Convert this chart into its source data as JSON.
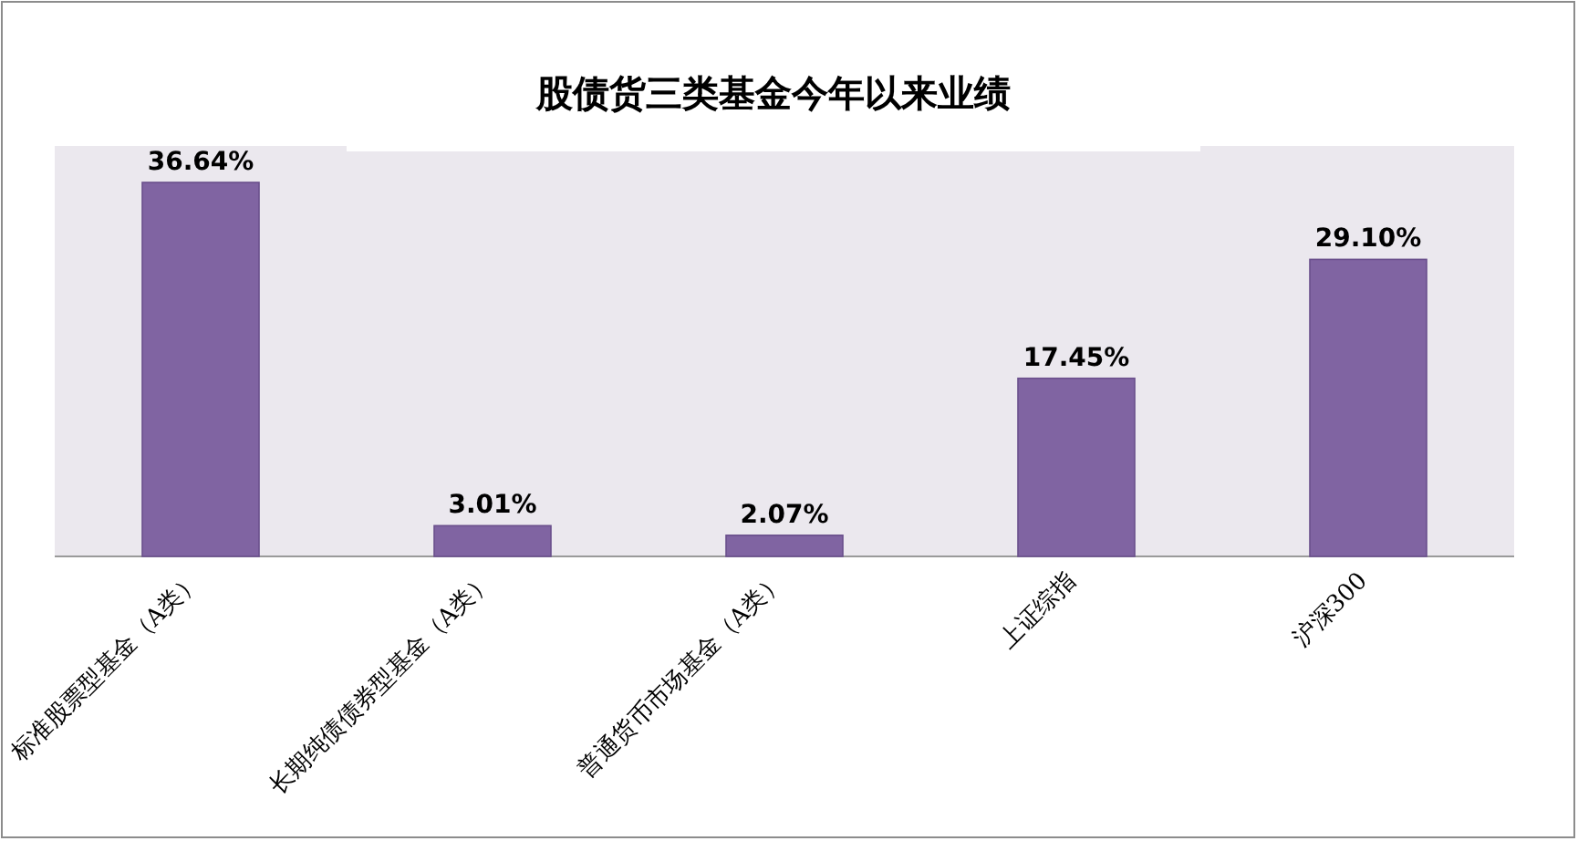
{
  "chart_data": {
    "type": "bar",
    "title": "股债货三类基金今年以来业绩",
    "categories": [
      "标准股票型基金（A类）",
      "长期纯债债券型基金（A类）",
      "普通货币市场基金（A类）",
      "上证综指",
      "沪深300"
    ],
    "values": [
      36.64,
      3.01,
      2.07,
      17.45,
      29.1
    ],
    "value_labels": [
      "36.64%",
      "3.01%",
      "2.07%",
      "17.45%",
      "29.10%"
    ],
    "color": "#8064a2"
  }
}
